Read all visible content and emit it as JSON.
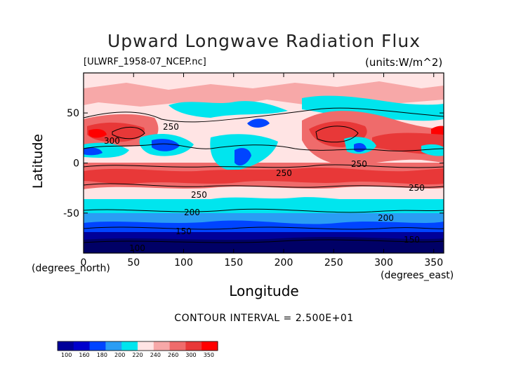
{
  "title": "Upward Longwave Radiation Flux",
  "file_label": "[ULWRF_1958-07_NCEP.nc]",
  "units_label": "(units:W/m^2)",
  "x_axis_label": "Longitude",
  "x_unit_label": "(degrees_east)",
  "y_axis_label": "Latitude",
  "y_unit_label": "(degrees_north)",
  "contour_interval_text": "CONTOUR INTERVAL = 2.500E+01",
  "colors": {
    "c100": "#000099",
    "c160": "#0000cc",
    "c180": "#0044ff",
    "c200": "#2a9df4",
    "c220": "#00e5ee",
    "c240": "#ffe4e4",
    "c250": "#f7a8a8",
    "c260": "#ef6b6b",
    "c300": "#e83838",
    "c350": "#ff0000"
  },
  "chart_data": {
    "type": "heatmap",
    "title": "Upward Longwave Radiation Flux",
    "xlabel": "Longitude",
    "ylabel": "Latitude",
    "xlim": [
      0,
      360
    ],
    "ylim": [
      -90,
      90
    ],
    "x_ticks": [
      0,
      50,
      100,
      150,
      200,
      250,
      300,
      350
    ],
    "y_ticks": [
      -50,
      0,
      50
    ],
    "colorbar_levels": [
      "100",
      "160",
      "180",
      "200",
      "220",
      "240",
      "260",
      "300",
      "350"
    ],
    "colorbar_colors": [
      "#000099",
      "#0000cc",
      "#0044ff",
      "#2a9df4",
      "#00e5ee",
      "#ffe4e4",
      "#f7a8a8",
      "#ef6b6b",
      "#e83838",
      "#ff0000"
    ],
    "contour_labels": [
      {
        "lon": 85,
        "lat": 42,
        "text": "250"
      },
      {
        "lon": 30,
        "lat": 25,
        "text": "300"
      },
      {
        "lon": 200,
        "lat": -8,
        "text": "250"
      },
      {
        "lon": 275,
        "lat": 2,
        "text": "250"
      },
      {
        "lon": 120,
        "lat": -33,
        "text": "250"
      },
      {
        "lon": 335,
        "lat": -26,
        "text": "250"
      },
      {
        "lon": 110,
        "lat": -52,
        "text": "200"
      },
      {
        "lon": 300,
        "lat": -58,
        "text": "200"
      },
      {
        "lon": 100,
        "lat": -72,
        "text": "150"
      },
      {
        "lon": 325,
        "lat": -77,
        "text": "150"
      },
      {
        "lon": 55,
        "lat": -87,
        "text": "100"
      }
    ]
  }
}
